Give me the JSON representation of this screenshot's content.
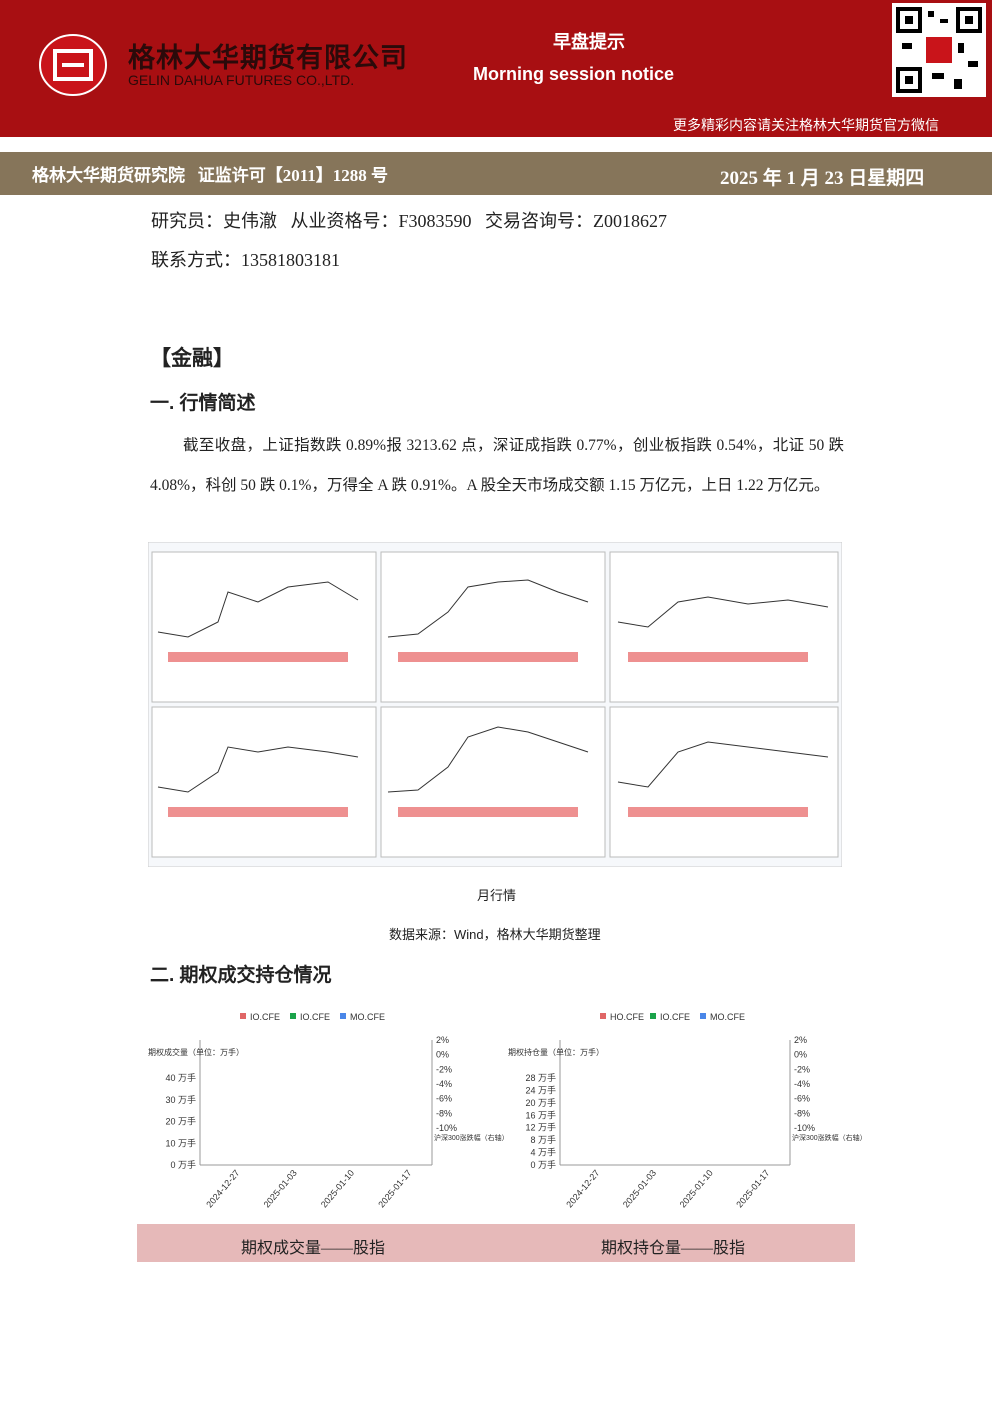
{
  "header": {
    "company_cn": "格林大华期货有限公司",
    "company_en": "GELIN DAHUA FUTURES CO.,LTD.",
    "title_cn": "早盘提示",
    "title_en": "Morning session notice",
    "wechat_note": "更多精彩内容请关注格林大华期货官方微信"
  },
  "banner": {
    "institute": "格林大华期货研究院",
    "license": "证监许可【2011】1288 号",
    "date": "2025 年 1 月 23 日星期四"
  },
  "contact": {
    "researcher": "研究员：史伟澈",
    "qualification": "从业资格号：F3083590",
    "consult": "交易咨询号：Z0018627",
    "phone": "联系方式：13581803181"
  },
  "section": "【金融】",
  "heading1": "一. 行情简述",
  "paragraph": "截至收盘，上证指数跌 0.89%报 3213.62 点，深证成指跌 0.77%，创业板指跌 0.54%，北证 50 跌 4.08%，科创 50 跌 0.1%，万得全 A 跌 0.91%。A 股全天市场成交额 1.15 万亿元，上日 1.22 万亿元。",
  "figure": {
    "caption": "月行情",
    "source": "数据来源：Wind，格林大华期货整理"
  },
  "heading2": "二. 期权成交持仓情况",
  "option_charts": [
    {
      "legend": [
        "IO.CFE",
        "IO.CFE",
        "MO.CFE"
      ],
      "y_label": "期权成交量（单位：万手）",
      "y_ticks": [
        "0 万手",
        "10 万手",
        "20 万手",
        "30 万手",
        "40 万手"
      ],
      "y2_ticks": [
        "2%",
        "0%",
        "-2%",
        "-4%",
        "-6%",
        "-8%",
        "-10%"
      ],
      "y2_label": "沪深300涨跌幅（右轴）",
      "x_ticks": [
        "2024-12-27",
        "2025-01-03",
        "2025-01-10",
        "2025-01-17"
      ]
    },
    {
      "legend": [
        "HO.CFE",
        "IO.CFE",
        "MO.CFE"
      ],
      "y_label": "期权持仓量（单位：万手）",
      "y_ticks": [
        "0 万手",
        "4 万手",
        "8 万手",
        "12 万手",
        "16 万手",
        "20 万手",
        "24 万手",
        "28 万手"
      ],
      "y2_ticks": [
        "2%",
        "0%",
        "-2%",
        "-4%",
        "-6%",
        "-8%",
        "-10%"
      ],
      "y2_label": "沪深300涨跌幅（右轴）",
      "x_ticks": [
        "2024-12-27",
        "2025-01-03",
        "2025-01-10",
        "2025-01-17"
      ]
    }
  ],
  "captions": [
    "期权成交量——股指",
    "期权持仓量——股指"
  ]
}
